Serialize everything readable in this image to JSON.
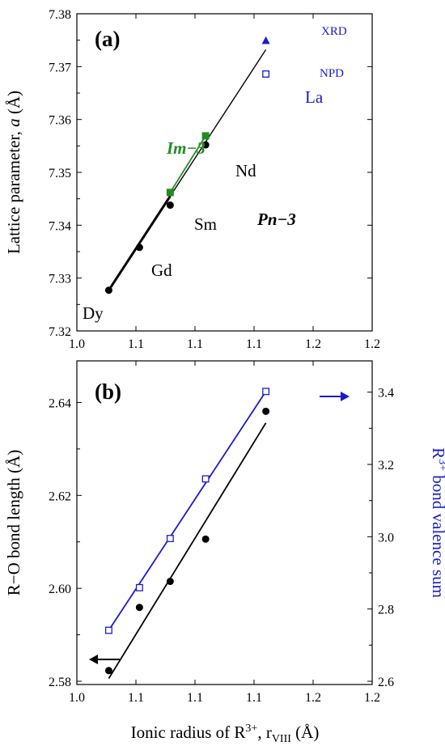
{
  "colors": {
    "black": "#000000",
    "green": "#228b22",
    "blue": "#1a1acd"
  },
  "chart_data": [
    {
      "type": "scatter",
      "panel_label": "(a)",
      "xlim": [
        1.0,
        1.2
      ],
      "ylim": [
        7.32,
        7.38
      ],
      "x_ticks": [
        "1.0",
        "1.1",
        "1.1",
        "1.1",
        "1.2",
        "1.2"
      ],
      "x_tick_values": [
        1.0,
        1.05,
        1.1,
        1.15,
        1.2,
        1.25
      ],
      "y_ticks": [
        "7.32",
        "7.33",
        "7.34",
        "7.35",
        "7.36",
        "7.37",
        "7.38"
      ],
      "ylabel_pre": "Lattice parameter, ",
      "ylabel_var": "a",
      "ylabel_post": " (Å)",
      "series": [
        {
          "name": "Pn−3",
          "color": "#000000",
          "marker": "circle",
          "x": [
            1.027,
            1.053,
            1.079,
            1.109
          ],
          "y": [
            7.3277,
            7.3358,
            7.3438,
            7.3552
          ]
        },
        {
          "name": "Im−3",
          "color": "#228b22",
          "marker": "square",
          "x": [
            1.079,
            1.109
          ],
          "y": [
            7.3462,
            7.3569
          ]
        },
        {
          "name": "XRD",
          "color": "#1a1acd",
          "marker": "triangle",
          "x": [
            1.16
          ],
          "y": [
            7.3749
          ]
        },
        {
          "name": "NPD",
          "color": "#1a1acd",
          "marker": "open-square",
          "x": [
            1.16
          ],
          "y": [
            7.3686
          ]
        }
      ],
      "fits": [
        {
          "color": "#000000",
          "x": [
            1.027,
            1.16
          ],
          "y": [
            7.3277,
            7.3732
          ]
        },
        {
          "color": "#228b22",
          "x": [
            1.079,
            1.109
          ],
          "y": [
            7.3462,
            7.3569
          ]
        }
      ],
      "point_labels": [
        "Dy",
        "Gd",
        "Sm",
        "Nd",
        "La"
      ],
      "phase_labels": {
        "cubic_im3": "Im−3",
        "cubic_pn3": "Pn−3"
      },
      "legend_labels": {
        "xrd": "XRD",
        "npd": "NPD"
      }
    },
    {
      "type": "scatter",
      "panel_label": "(b)",
      "xlim": [
        1.0,
        1.2
      ],
      "ylim": [
        2.58,
        2.65
      ],
      "y2lim": [
        2.6,
        3.5
      ],
      "x_ticks": [
        "1.0",
        "1.1",
        "1.1",
        "1.1",
        "1.2",
        "1.2"
      ],
      "x_tick_values": [
        1.0,
        1.05,
        1.1,
        1.15,
        1.2,
        1.25
      ],
      "y_ticks": [
        "2.58",
        "2.60",
        "2.62",
        "2.64"
      ],
      "y_tick_values": [
        2.58,
        2.6,
        2.62,
        2.64
      ],
      "y2_ticks": [
        "2.6",
        "2.8",
        "3.0",
        "3.2",
        "3.4"
      ],
      "y2_tick_values": [
        2.6,
        2.8,
        3.0,
        3.2,
        3.4
      ],
      "ylabel": "R−O bond length (Å)",
      "y2label_pre": "R",
      "y2label_sup": "3+",
      "y2label_post": " bond valence sum",
      "xlabel_pre": "Ionic radius of R",
      "xlabel_sup": "3+",
      "xlabel_mid": ", r",
      "xlabel_sub": "VIII",
      "xlabel_post": " (Å)",
      "series": [
        {
          "name": "R−O bond length",
          "axis": "left",
          "color": "#000000",
          "marker": "circle",
          "x": [
            1.027,
            1.053,
            1.079,
            1.109,
            1.16
          ],
          "y": [
            2.5823,
            2.5959,
            2.6015,
            2.6106,
            2.6381
          ]
        },
        {
          "name": "R3+ bond valence sum",
          "axis": "right",
          "color": "#1a1acd",
          "marker": "open-square",
          "x": [
            1.027,
            1.053,
            1.079,
            1.109,
            1.16
          ],
          "y": [
            2.741,
            2.859,
            2.995,
            3.16,
            3.402
          ]
        }
      ],
      "fits": [
        {
          "axis": "left",
          "color": "#000000",
          "x": [
            1.027,
            1.16
          ],
          "y": [
            2.5806,
            2.6356
          ]
        },
        {
          "axis": "right",
          "color": "#1a1acd",
          "x": [
            1.027,
            1.16
          ],
          "y": [
            2.741,
            3.402
          ]
        }
      ]
    }
  ]
}
